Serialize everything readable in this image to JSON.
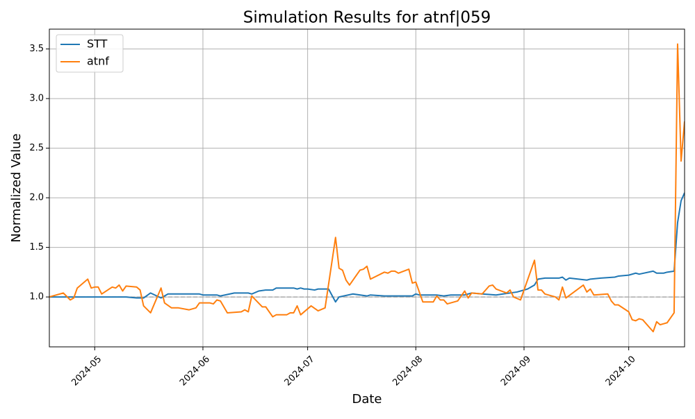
{
  "chart_data": {
    "type": "line",
    "title": "Simulation Results for atnf|059",
    "x_label": "Date",
    "y_label": "Normalized Value",
    "xlim": [
      "2024-04-18",
      "2024-10-17"
    ],
    "xticks": [
      {
        "value": "2024-05-01",
        "label": "2024-05"
      },
      {
        "value": "2024-06-01",
        "label": "2024-06"
      },
      {
        "value": "2024-07-01",
        "label": "2024-07"
      },
      {
        "value": "2024-08-01",
        "label": "2024-08"
      },
      {
        "value": "2024-09-01",
        "label": "2024-09"
      },
      {
        "value": "2024-10-01",
        "label": "2024-10"
      }
    ],
    "ylim": [
      0.497,
      3.7
    ],
    "yticks": [
      {
        "value": 1,
        "label": "1.0"
      },
      {
        "value": 1.5,
        "label": "1.5"
      },
      {
        "value": 2,
        "label": "2.0"
      },
      {
        "value": 2.5,
        "label": "2.5"
      },
      {
        "value": 3,
        "label": "3.0"
      },
      {
        "value": 3.5,
        "label": "3.5"
      }
    ],
    "grid": true,
    "legend": "upper-left",
    "reference_line": {
      "value": 1,
      "color": "#aaaaaa"
    },
    "series": [
      {
        "name": "STT",
        "color": "#1f77b4",
        "x": [
          "2024-04-18",
          "2024-05-10",
          "2024-05-13",
          "2024-05-15",
          "2024-05-17",
          "2024-05-20",
          "2024-05-22",
          "2024-05-31",
          "2024-06-01",
          "2024-06-05",
          "2024-06-06",
          "2024-06-10",
          "2024-06-14",
          "2024-06-15",
          "2024-06-17",
          "2024-06-19",
          "2024-06-21",
          "2024-06-22",
          "2024-06-27",
          "2024-06-28",
          "2024-06-29",
          "2024-06-30",
          "2024-07-01",
          "2024-07-03",
          "2024-07-04",
          "2024-07-07",
          "2024-07-09",
          "2024-07-10",
          "2024-07-14",
          "2024-07-18",
          "2024-07-19",
          "2024-07-23",
          "2024-07-31",
          "2024-08-01",
          "2024-08-02",
          "2024-08-07",
          "2024-08-09",
          "2024-08-11",
          "2024-08-15",
          "2024-08-17",
          "2024-08-20",
          "2024-08-24",
          "2024-08-26",
          "2024-08-30",
          "2024-09-02",
          "2024-09-04",
          "2024-09-05",
          "2024-09-07",
          "2024-09-11",
          "2024-09-12",
          "2024-09-13",
          "2024-09-14",
          "2024-09-19",
          "2024-09-20",
          "2024-09-23",
          "2024-09-27",
          "2024-09-28",
          "2024-10-01",
          "2024-10-03",
          "2024-10-04",
          "2024-10-08",
          "2024-10-09",
          "2024-10-11",
          "2024-10-12",
          "2024-10-14",
          "2024-10-15",
          "2024-10-16",
          "2024-10-17"
        ],
        "values": [
          1.0,
          1.0,
          0.99,
          0.99,
          1.04,
          0.99,
          1.03,
          1.03,
          1.02,
          1.02,
          1.01,
          1.04,
          1.04,
          1.03,
          1.06,
          1.07,
          1.07,
          1.09,
          1.09,
          1.08,
          1.09,
          1.08,
          1.08,
          1.07,
          1.08,
          1.08,
          0.95,
          1.0,
          1.03,
          1.01,
          1.02,
          1.01,
          1.01,
          1.03,
          1.02,
          1.02,
          1.01,
          1.02,
          1.02,
          1.04,
          1.03,
          1.02,
          1.03,
          1.05,
          1.08,
          1.12,
          1.18,
          1.19,
          1.19,
          1.2,
          1.17,
          1.19,
          1.17,
          1.18,
          1.19,
          1.2,
          1.21,
          1.22,
          1.24,
          1.23,
          1.26,
          1.24,
          1.24,
          1.25,
          1.26,
          1.75,
          1.97,
          2.05
        ]
      },
      {
        "name": "atnf",
        "color": "#ff7f0e",
        "x": [
          "2024-04-18",
          "2024-04-22",
          "2024-04-24",
          "2024-04-25",
          "2024-04-26",
          "2024-04-29",
          "2024-04-30",
          "2024-05-01",
          "2024-05-02",
          "2024-05-03",
          "2024-05-06",
          "2024-05-07",
          "2024-05-08",
          "2024-05-09",
          "2024-05-10",
          "2024-05-13",
          "2024-05-14",
          "2024-05-15",
          "2024-05-17",
          "2024-05-20",
          "2024-05-21",
          "2024-05-23",
          "2024-05-25",
          "2024-05-28",
          "2024-05-30",
          "2024-05-31",
          "2024-06-03",
          "2024-06-04",
          "2024-06-05",
          "2024-06-06",
          "2024-06-08",
          "2024-06-12",
          "2024-06-13",
          "2024-06-14",
          "2024-06-15",
          "2024-06-18",
          "2024-06-19",
          "2024-06-21",
          "2024-06-22",
          "2024-06-25",
          "2024-06-26",
          "2024-06-27",
          "2024-06-28",
          "2024-06-29",
          "2024-07-02",
          "2024-07-04",
          "2024-07-06",
          "2024-07-09",
          "2024-07-10",
          "2024-07-11",
          "2024-07-12",
          "2024-07-13",
          "2024-07-16",
          "2024-07-17",
          "2024-07-18",
          "2024-07-19",
          "2024-07-23",
          "2024-07-24",
          "2024-07-25",
          "2024-07-26",
          "2024-07-27",
          "2024-07-30",
          "2024-07-31",
          "2024-08-01",
          "2024-08-03",
          "2024-08-06",
          "2024-08-07",
          "2024-08-08",
          "2024-08-09",
          "2024-08-10",
          "2024-08-13",
          "2024-08-15",
          "2024-08-16",
          "2024-08-17",
          "2024-08-20",
          "2024-08-22",
          "2024-08-23",
          "2024-08-24",
          "2024-08-27",
          "2024-08-28",
          "2024-08-29",
          "2024-08-31",
          "2024-09-04",
          "2024-09-05",
          "2024-09-06",
          "2024-09-07",
          "2024-09-10",
          "2024-09-11",
          "2024-09-12",
          "2024-09-13",
          "2024-09-18",
          "2024-09-19",
          "2024-09-20",
          "2024-09-21",
          "2024-09-25",
          "2024-09-26",
          "2024-09-27",
          "2024-09-28",
          "2024-10-01",
          "2024-10-02",
          "2024-10-03",
          "2024-10-04",
          "2024-10-05",
          "2024-10-08",
          "2024-10-09",
          "2024-10-10",
          "2024-10-11",
          "2024-10-12",
          "2024-10-14",
          "2024-10-15",
          "2024-10-16",
          "2024-10-17"
        ],
        "values": [
          1.0,
          1.04,
          0.97,
          0.99,
          1.09,
          1.18,
          1.09,
          1.1,
          1.1,
          1.03,
          1.1,
          1.09,
          1.12,
          1.06,
          1.11,
          1.1,
          1.07,
          0.91,
          0.84,
          1.09,
          0.94,
          0.89,
          0.89,
          0.87,
          0.89,
          0.94,
          0.94,
          0.93,
          0.97,
          0.96,
          0.84,
          0.85,
          0.87,
          0.85,
          1.01,
          0.9,
          0.9,
          0.8,
          0.82,
          0.82,
          0.84,
          0.84,
          0.91,
          0.82,
          0.91,
          0.86,
          0.89,
          1.6,
          1.29,
          1.27,
          1.17,
          1.12,
          1.27,
          1.28,
          1.31,
          1.18,
          1.25,
          1.24,
          1.26,
          1.26,
          1.24,
          1.28,
          1.14,
          1.15,
          0.95,
          0.95,
          1.01,
          0.97,
          0.97,
          0.93,
          0.96,
          1.06,
          0.99,
          1.04,
          1.03,
          1.11,
          1.12,
          1.08,
          1.04,
          1.07,
          1.0,
          0.97,
          1.37,
          1.07,
          1.07,
          1.03,
          1.0,
          0.97,
          1.1,
          0.99,
          1.12,
          1.05,
          1.08,
          1.02,
          1.03,
          0.96,
          0.92,
          0.92,
          0.85,
          0.77,
          0.76,
          0.78,
          0.77,
          0.65,
          0.75,
          0.72,
          0.73,
          0.74,
          0.84,
          3.55,
          2.37,
          2.77
        ]
      }
    ]
  }
}
